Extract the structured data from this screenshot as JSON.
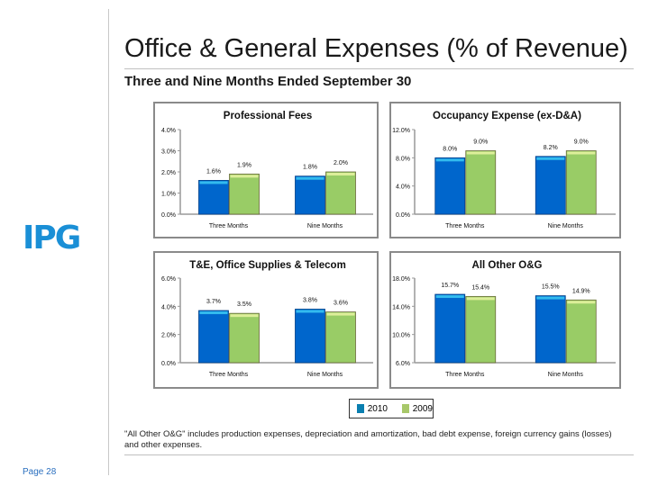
{
  "header": {
    "title": "Office & General Expenses (% of Revenue)",
    "subtitle": "Three and Nine Months Ended September 30"
  },
  "logo": "IPG",
  "page": "Page 28",
  "colors": {
    "2010": "#0066cc",
    "2009": "#99cc66"
  },
  "legend": {
    "items": [
      {
        "label": "2010"
      },
      {
        "label": "2009"
      }
    ]
  },
  "footnote": "\"All Other O&G\" includes production expenses, depreciation and amortization, bad debt expense, foreign currency gains (losses) and other expenses.",
  "chart_data": [
    {
      "type": "bar",
      "title": "Professional Fees",
      "categories": [
        "Three Months",
        "Nine Months"
      ],
      "series": [
        {
          "name": "2010",
          "values": [
            1.6,
            1.8
          ]
        },
        {
          "name": "2009",
          "values": [
            1.9,
            2.0
          ]
        }
      ],
      "labels": [
        [
          "1.6%",
          "1.8%"
        ],
        [
          "1.9%",
          "2.0%"
        ]
      ],
      "ylim": [
        0,
        4
      ],
      "yticks": [
        "0.0%",
        "1.0%",
        "2.0%",
        "3.0%",
        "4.0%"
      ]
    },
    {
      "type": "bar",
      "title": "Occupancy Expense (ex-D&A)",
      "categories": [
        "Three Months",
        "Nine Months"
      ],
      "series": [
        {
          "name": "2010",
          "values": [
            8.0,
            8.2
          ]
        },
        {
          "name": "2009",
          "values": [
            9.0,
            9.0
          ]
        }
      ],
      "labels": [
        [
          "8.0%",
          "8.2%"
        ],
        [
          "9.0%",
          "9.0%"
        ]
      ],
      "ylim": [
        0,
        12
      ],
      "yticks": [
        "0.0%",
        "4.0%",
        "8.0%",
        "12.0%"
      ]
    },
    {
      "type": "bar",
      "title": "T&E, Office Supplies & Telecom",
      "categories": [
        "Three Months",
        "Nine Months"
      ],
      "series": [
        {
          "name": "2010",
          "values": [
            3.7,
            3.8
          ]
        },
        {
          "name": "2009",
          "values": [
            3.5,
            3.6
          ]
        }
      ],
      "labels": [
        [
          "3.7%",
          "3.8%"
        ],
        [
          "3.5%",
          "3.6%"
        ]
      ],
      "ylim": [
        0,
        6
      ],
      "yticks": [
        "0.0%",
        "2.0%",
        "4.0%",
        "6.0%"
      ]
    },
    {
      "type": "bar",
      "title": "All Other O&G",
      "categories": [
        "Three Months",
        "Nine Months"
      ],
      "series": [
        {
          "name": "2010",
          "values": [
            15.7,
            15.5
          ]
        },
        {
          "name": "2009",
          "values": [
            15.4,
            14.9
          ]
        }
      ],
      "labels": [
        [
          "15.7%",
          "15.5%"
        ],
        [
          "15.4%",
          "14.9%"
        ]
      ],
      "ylim": [
        6,
        18
      ],
      "yticks": [
        "6.0%",
        "10.0%",
        "14.0%",
        "18.0%"
      ]
    }
  ]
}
